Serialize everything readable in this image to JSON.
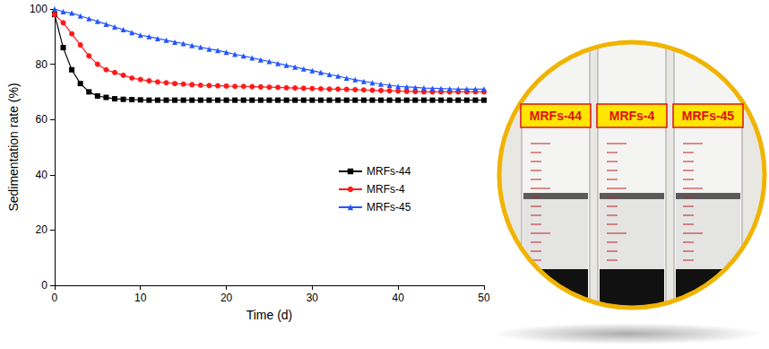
{
  "chart_data": {
    "type": "line",
    "x_label": "Time (d)",
    "y_label": "Sedimentation rate (%)",
    "x": [
      0,
      1,
      2,
      3,
      4,
      5,
      6,
      7,
      8,
      9,
      10,
      11,
      12,
      13,
      14,
      15,
      16,
      17,
      18,
      19,
      20,
      21,
      22,
      23,
      24,
      25,
      26,
      27,
      28,
      29,
      30,
      31,
      32,
      33,
      34,
      35,
      36,
      37,
      38,
      39,
      40,
      41,
      42,
      43,
      44,
      45,
      46,
      47,
      48,
      49,
      50
    ],
    "series": [
      {
        "name": "MRFs-44",
        "color": "#000000",
        "marker": "square",
        "line_style": "solid",
        "values": [
          98,
          86,
          78,
          73,
          70,
          68.5,
          68,
          67.5,
          67.3,
          67.2,
          67.1,
          67,
          67,
          67,
          67,
          67,
          67,
          67,
          67,
          67,
          67,
          67,
          67,
          67,
          67,
          67,
          67,
          67,
          67,
          67,
          67,
          67,
          67,
          67,
          67,
          67,
          67,
          67,
          67,
          67,
          67,
          67,
          67,
          67,
          67,
          67,
          67,
          67,
          67,
          67,
          67
        ]
      },
      {
        "name": "MRFs-4",
        "color": "#ff1a1a",
        "marker": "circle",
        "line_style": "solid",
        "values": [
          98,
          95,
          91,
          87,
          83,
          80,
          78,
          77,
          76,
          75,
          74.5,
          74,
          73.6,
          73.3,
          73,
          72.8,
          72.6,
          72.4,
          72.3,
          72.2,
          72.1,
          72,
          72,
          71.9,
          71.8,
          71.7,
          71.6,
          71.5,
          71.4,
          71.3,
          71.2,
          71.1,
          71,
          71,
          70.9,
          70.8,
          70.7,
          70.6,
          70.5,
          70.4,
          70.3,
          70.2,
          70.1,
          70,
          70,
          70,
          70,
          70,
          70,
          70,
          70
        ]
      },
      {
        "name": "MRFs-45",
        "color": "#2255ff",
        "marker": "triangle",
        "line_style": "solid",
        "values": [
          100,
          99,
          98.5,
          97.5,
          96.5,
          95.5,
          94.5,
          93.5,
          92.5,
          91.5,
          90.5,
          90,
          89.3,
          88.7,
          88,
          87.5,
          86.8,
          86.2,
          85.5,
          85,
          84.3,
          83.6,
          83,
          82.3,
          81.6,
          81,
          80.3,
          79.6,
          79,
          78.3,
          77.7,
          77,
          76.3,
          75.7,
          75,
          74.4,
          73.8,
          73.3,
          72.8,
          72.4,
          72,
          71.8,
          71.6,
          71.4,
          71.3,
          71.2,
          71.1,
          71,
          71,
          71,
          71
        ]
      }
    ],
    "xlim": [
      0,
      50
    ],
    "xticks": [
      0,
      10,
      20,
      30,
      40,
      50
    ],
    "ylim": [
      0,
      100
    ],
    "yticks": [
      0,
      20,
      40,
      60,
      80,
      100
    ],
    "grid": false,
    "legend": "right"
  }
}
